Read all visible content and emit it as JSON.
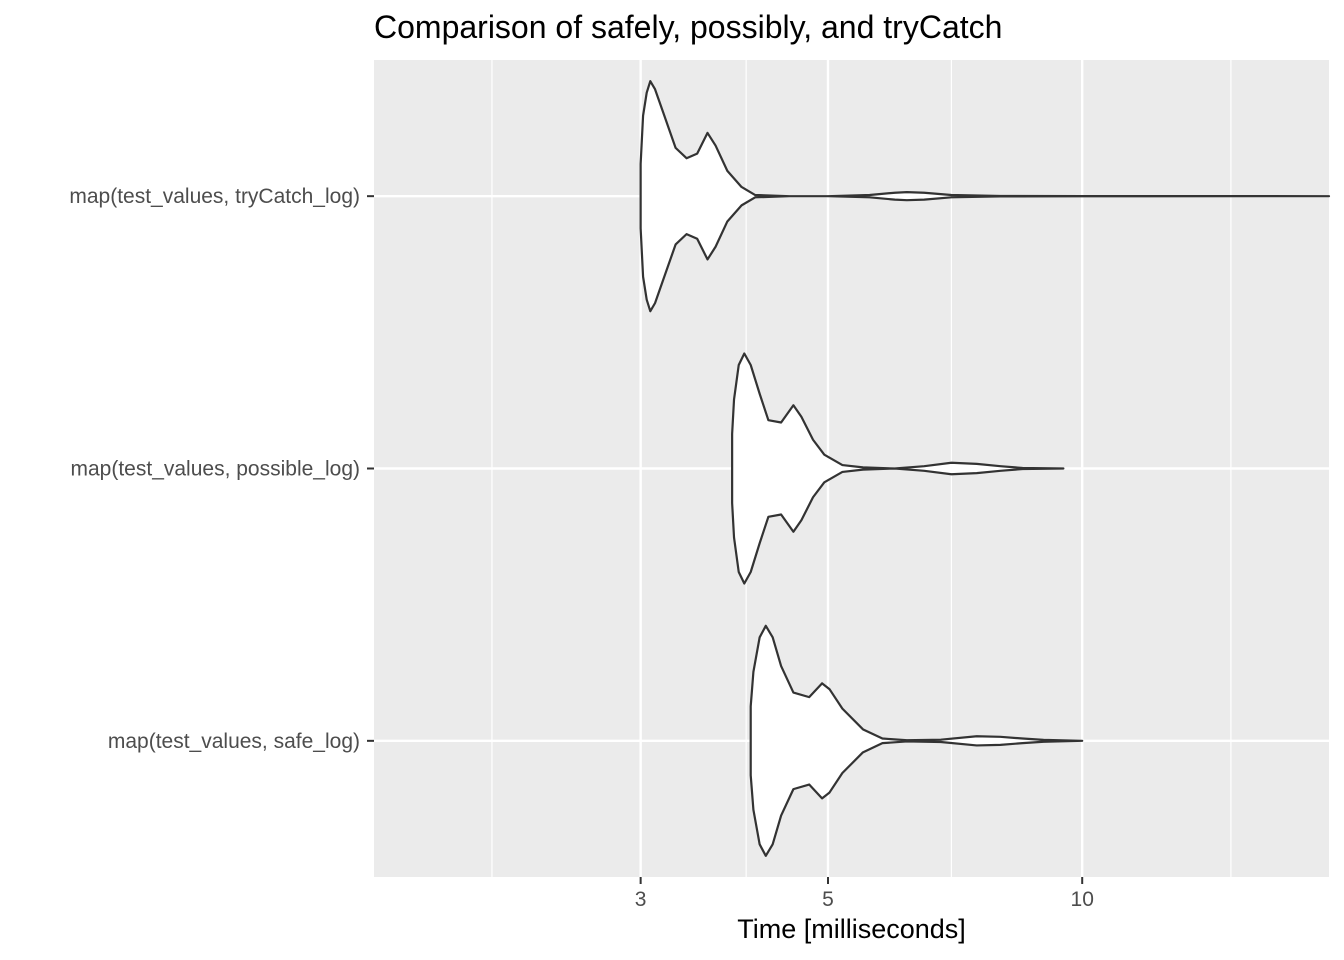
{
  "chart_data": {
    "type": "violin",
    "title": "Comparison of safely, possibly, and tryCatch",
    "xlabel": "Time [milliseconds]",
    "ylabel": "",
    "x_scale": "log10",
    "xlim": [
      1.45,
      19.6
    ],
    "x_ticks": [
      3,
      5,
      10
    ],
    "x_tick_labels": [
      "3",
      "5",
      "10"
    ],
    "x_minor_gridlines": [
      2,
      4,
      7,
      15
    ],
    "grid": true,
    "legend": "none",
    "categories": [
      "map(test_values, tryCatch_log)",
      "map(test_values, possible_log)",
      "map(test_values, safe_log)"
    ],
    "series": [
      {
        "category": "map(test_values, tryCatch_log)",
        "min": 3.0,
        "max": 19.6,
        "density": [
          [
            3.0,
            0.28
          ],
          [
            3.02,
            0.7
          ],
          [
            3.05,
            0.9
          ],
          [
            3.08,
            1.0
          ],
          [
            3.12,
            0.93
          ],
          [
            3.2,
            0.7
          ],
          [
            3.3,
            0.42
          ],
          [
            3.4,
            0.33
          ],
          [
            3.5,
            0.37
          ],
          [
            3.6,
            0.55
          ],
          [
            3.68,
            0.44
          ],
          [
            3.8,
            0.22
          ],
          [
            3.95,
            0.08
          ],
          [
            4.1,
            0.01
          ],
          [
            4.5,
            0.0
          ],
          [
            5.0,
            0.0
          ],
          [
            5.6,
            0.01
          ],
          [
            6.0,
            0.03
          ],
          [
            6.2,
            0.035
          ],
          [
            6.5,
            0.03
          ],
          [
            7.0,
            0.01
          ],
          [
            8.0,
            0.002
          ],
          [
            10.0,
            0.001
          ],
          [
            19.6,
            0.0
          ]
        ]
      },
      {
        "category": "map(test_values, possible_log)",
        "min": 3.85,
        "max": 9.5,
        "density": [
          [
            3.85,
            0.3
          ],
          [
            3.87,
            0.6
          ],
          [
            3.92,
            0.9
          ],
          [
            3.98,
            1.0
          ],
          [
            4.05,
            0.9
          ],
          [
            4.15,
            0.65
          ],
          [
            4.25,
            0.42
          ],
          [
            4.4,
            0.4
          ],
          [
            4.55,
            0.55
          ],
          [
            4.65,
            0.45
          ],
          [
            4.8,
            0.25
          ],
          [
            4.95,
            0.12
          ],
          [
            5.2,
            0.03
          ],
          [
            5.5,
            0.01
          ],
          [
            6.0,
            0.0
          ],
          [
            6.5,
            0.02
          ],
          [
            7.0,
            0.05
          ],
          [
            7.5,
            0.04
          ],
          [
            8.0,
            0.02
          ],
          [
            8.5,
            0.005
          ],
          [
            9.5,
            0.0
          ]
        ]
      },
      {
        "category": "map(test_values, safe_log)",
        "min": 4.05,
        "max": 10.0,
        "density": [
          [
            4.05,
            0.3
          ],
          [
            4.08,
            0.6
          ],
          [
            4.15,
            0.9
          ],
          [
            4.22,
            1.0
          ],
          [
            4.3,
            0.9
          ],
          [
            4.4,
            0.65
          ],
          [
            4.55,
            0.42
          ],
          [
            4.75,
            0.38
          ],
          [
            4.92,
            0.5
          ],
          [
            5.02,
            0.45
          ],
          [
            5.2,
            0.28
          ],
          [
            5.5,
            0.1
          ],
          [
            5.8,
            0.02
          ],
          [
            6.2,
            0.005
          ],
          [
            6.8,
            0.01
          ],
          [
            7.5,
            0.04
          ],
          [
            8.0,
            0.035
          ],
          [
            8.5,
            0.02
          ],
          [
            9.0,
            0.008
          ],
          [
            10.0,
            0.0
          ]
        ]
      }
    ],
    "colors": {
      "panel": "#ebebeb",
      "grid_major": "#ffffff",
      "violin_fill": "#ffffff",
      "violin_stroke": "#333333",
      "tick_label": "#4d4d4d"
    }
  }
}
